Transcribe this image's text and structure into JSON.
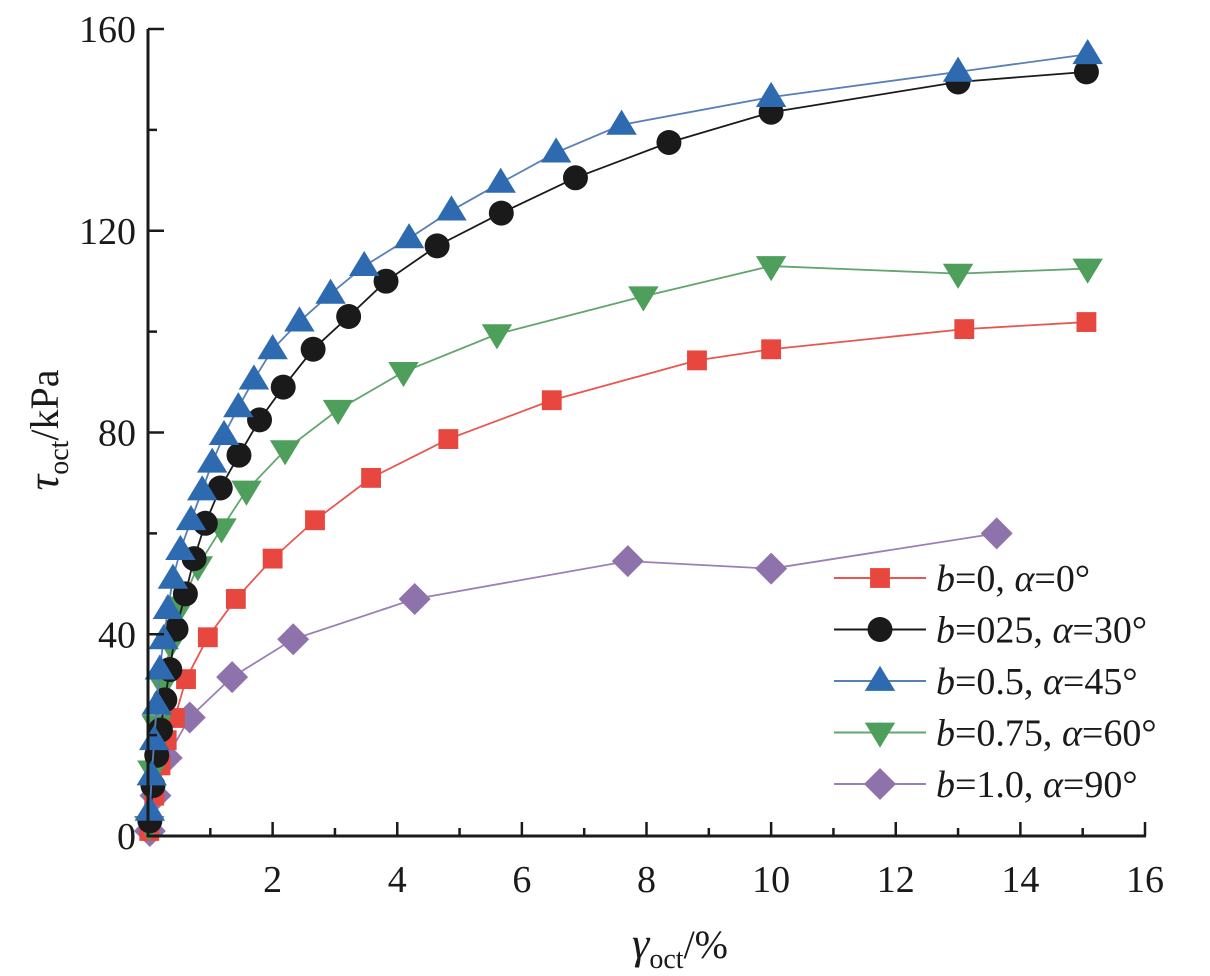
{
  "chart_data": {
    "type": "line",
    "title": "",
    "xlabel": {
      "symbol": "γ",
      "subscript": "oct",
      "unit": "/%"
    },
    "ylabel": {
      "symbol": "τ",
      "subscript": "oct",
      "unit": "/kPa"
    },
    "xlim": [
      0,
      16
    ],
    "ylim": [
      0,
      160
    ],
    "x_ticks": [
      2,
      4,
      6,
      8,
      10,
      12,
      14,
      16
    ],
    "y_ticks": [
      0,
      40,
      80,
      120,
      160
    ],
    "grid": false,
    "legend_position": "bottom-right",
    "series": [
      {
        "name": "b=0, α=0°",
        "b_label": "b",
        "b_value": "=0, ",
        "alpha_label": "α",
        "alpha_value": "=0°",
        "marker": "square",
        "color": "#e8473f",
        "line_color": "#e8574f",
        "x": [
          0.02,
          0.1,
          0.2,
          0.3,
          0.43,
          0.61,
          0.96,
          1.41,
          2.0,
          2.68,
          3.58,
          4.82,
          6.48,
          8.81,
          10.0,
          13.1,
          15.06
        ],
        "y": [
          1,
          8,
          14,
          19,
          23.4,
          31.1,
          39.4,
          47,
          55,
          62.6,
          71,
          78.7,
          86.4,
          94.3,
          96.5,
          100.5,
          101.9
        ]
      },
      {
        "name": "b=025, α=30°",
        "b_label": "b",
        "b_value": "=025, ",
        "alpha_label": "α",
        "alpha_value": "=30°",
        "marker": "circle",
        "color": "#1a1a1a",
        "line_color": "#1a1a1a",
        "x": [
          0.03,
          0.08,
          0.14,
          0.2,
          0.27,
          0.35,
          0.45,
          0.6,
          0.74,
          0.92,
          1.16,
          1.46,
          1.79,
          2.17,
          2.65,
          3.22,
          3.82,
          4.64,
          5.67,
          6.86,
          8.36,
          10.0,
          13.0,
          15.06
        ],
        "y": [
          3,
          10,
          16,
          21,
          27,
          33,
          41,
          48,
          55,
          62,
          69,
          75.5,
          82.5,
          89,
          96.5,
          103,
          110,
          117,
          123.5,
          130.5,
          137.5,
          143.5,
          149.5,
          151.5
        ]
      },
      {
        "name": "b=0.5, α=45°",
        "b_label": "b",
        "b_value": "=0.5, ",
        "alpha_label": "α",
        "alpha_value": "=45°",
        "marker": "triangle-up",
        "color": "#2e6aaf",
        "line_color": "#5a7fb8",
        "x": [
          0.03,
          0.06,
          0.1,
          0.14,
          0.19,
          0.25,
          0.32,
          0.4,
          0.52,
          0.69,
          0.87,
          1.03,
          1.22,
          1.45,
          1.7,
          2.0,
          2.43,
          2.93,
          3.47,
          4.19,
          4.87,
          5.66,
          6.55,
          7.6,
          10.0,
          13.0,
          15.08
        ],
        "y": [
          5,
          12,
          19,
          26,
          33,
          39,
          45,
          51,
          56.7,
          62.6,
          68.5,
          74,
          79.5,
          85,
          90.5,
          96.5,
          102,
          107.5,
          113,
          118.5,
          124,
          129.5,
          135.5,
          141,
          146.5,
          151.5,
          155
        ]
      },
      {
        "name": "b=0.75, α=60°",
        "b_label": "b",
        "b_value": "=0.75, ",
        "alpha_label": "α",
        "alpha_value": "=60°",
        "marker": "triangle-down",
        "color": "#4e9e5c",
        "line_color": "#62a56e",
        "x": [
          0.02,
          0.07,
          0.14,
          0.24,
          0.36,
          0.52,
          0.8,
          1.18,
          1.58,
          2.2,
          3.05,
          4.1,
          5.6,
          7.95,
          10.0,
          13.0,
          15.08
        ],
        "y": [
          2,
          13,
          22,
          30,
          38,
          45.5,
          53.5,
          61,
          68.5,
          76.5,
          84.5,
          92,
          99.5,
          107,
          113,
          111.5,
          112.5
        ]
      },
      {
        "name": "b=1.0, α=90°",
        "b_label": "b",
        "b_value": "=1.0, ",
        "alpha_label": "α",
        "alpha_value": "=90°",
        "marker": "diamond",
        "color": "#8e72ab",
        "line_color": "#9a80b6",
        "x": [
          0.03,
          0.12,
          0.3,
          0.67,
          1.35,
          2.33,
          4.28,
          7.7,
          10.0,
          13.62
        ],
        "y": [
          1,
          8,
          15.5,
          23.5,
          31.5,
          39,
          47,
          54.5,
          53,
          60
        ]
      }
    ]
  }
}
